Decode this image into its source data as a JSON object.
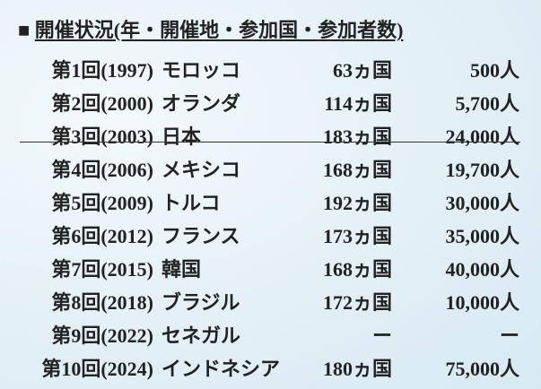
{
  "header": {
    "marker": "■",
    "title": "開催状況(年・開催地・参加国・参加者数)"
  },
  "table": {
    "rows": [
      [
        "第1回(1997)",
        "モロッコ",
        "63ヵ国",
        "500人"
      ],
      [
        "第2回(2000)",
        "オランダ",
        "114ヵ国",
        "5,700人"
      ],
      [
        "第3回(2003)",
        "日本",
        "183ヵ国",
        "24,000人"
      ],
      [
        "第4回(2006)",
        "メキシコ",
        "168ヵ国",
        "19,700人"
      ],
      [
        "第5回(2009)",
        "トルコ",
        "192ヵ国",
        "30,000人"
      ],
      [
        "第6回(2012)",
        "フランス",
        "173ヵ国",
        "35,000人"
      ],
      [
        "第7回(2015)",
        "韓国",
        "168ヵ国",
        "40,000人"
      ],
      [
        "第8回(2018)",
        "ブラジル",
        "172ヵ国",
        "10,000人"
      ],
      [
        "第9回(2022)",
        "セネガル",
        "ー",
        "ー"
      ],
      [
        "第10回(2024)",
        "インドネシア",
        "180ヵ国",
        "75,000人"
      ]
    ]
  }
}
